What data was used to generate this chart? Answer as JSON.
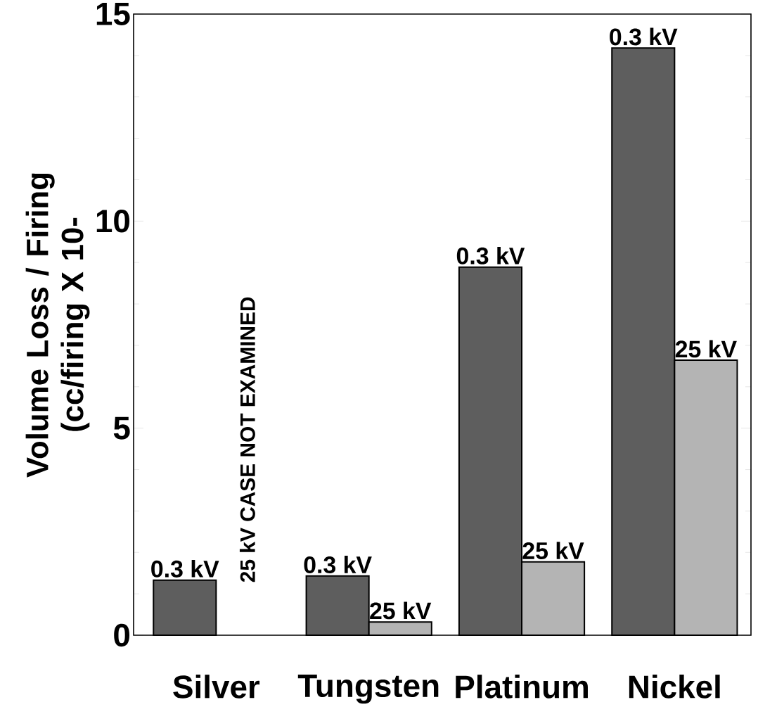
{
  "chart_data": {
    "type": "bar",
    "ylabel": "Volume Loss / Firing (cc/firing   X   10-",
    "categories": [
      "Silver",
      "Tungsten",
      "Platinum",
      "Nickel"
    ],
    "series": [
      {
        "name": "0.3 kV",
        "color": "#5e5e5e",
        "values": [
          1.33,
          1.43,
          8.89,
          14.18
        ]
      },
      {
        "name": "25 kV",
        "color": "#b4b4b4",
        "values": [
          null,
          0.32,
          1.77,
          6.64
        ]
      }
    ],
    "ylim": [
      0,
      15
    ],
    "yticks": [
      0,
      5,
      10,
      15
    ],
    "annotations": [
      "25 kV CASE NOT EXAMINED"
    ]
  }
}
